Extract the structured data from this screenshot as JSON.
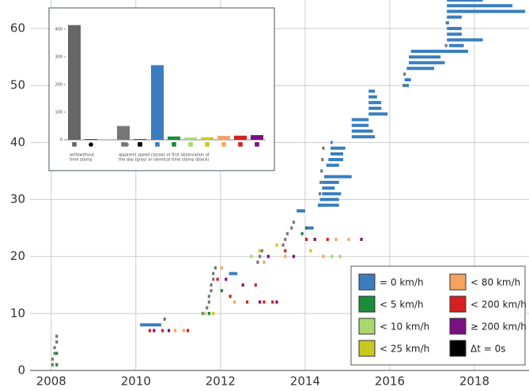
{
  "chart_data": [
    {
      "type": "timeline",
      "xlim": [
        2007.5,
        2019.29
      ],
      "ylim": [
        0,
        65
      ],
      "xticks": [
        2008,
        2010,
        2012,
        2014,
        2016,
        2018
      ],
      "yticks": [
        0,
        10,
        20,
        30,
        40,
        50,
        60
      ],
      "grid": true,
      "legend": "lower right",
      "series": [
        {
          "color": "#777777",
          "x": [
            2008.0,
            2008.0,
            2008.05,
            2008.05,
            2008.1,
            2008.1,
            2010.65,
            2011.55,
            2011.65,
            2011.7,
            2011.7,
            2011.75,
            2011.75,
            2011.8,
            2011.8,
            2011.85,
            2012.85,
            2012.9,
            2012.95,
            2013.45,
            2013.5,
            2013.55,
            2013.65,
            2013.7,
            2014.3,
            2014.32,
            2014.34,
            2014.36,
            2014.38,
            2014.4,
            2016.3,
            2016.32,
            2017.3,
            2017.32
          ],
          "x_end": [
            2008.06,
            2008.06,
            2008.11,
            2008.11,
            2008.16,
            2008.16,
            2010.71,
            2011.61,
            2011.71,
            2011.76,
            2011.76,
            2011.81,
            2011.81,
            2011.86,
            2011.86,
            2011.91,
            2012.91,
            2012.96,
            2013.01,
            2013.51,
            2013.56,
            2013.61,
            2013.71,
            2013.76,
            2014.36,
            2014.38,
            2014.4,
            2014.42,
            2014.44,
            2014.46,
            2016.36,
            2016.38,
            2017.36,
            2017.38
          ],
          "values": [
            1,
            2,
            3,
            4,
            5,
            6,
            9,
            10,
            11,
            12,
            13,
            14,
            15,
            16,
            17,
            18,
            19,
            20,
            21,
            22,
            23,
            24,
            25,
            26,
            29,
            31,
            33,
            35,
            37,
            39,
            50,
            52,
            57,
            61
          ]
        },
        {
          "name": "= 0 km/h",
          "color": "#3a7ebf",
          "x": [
            2010.1,
            2012.2,
            2013.8,
            2014.0,
            2014.3,
            2014.35,
            2014.4,
            2014.4,
            2014.4,
            2014.45,
            2014.5,
            2014.55,
            2014.6,
            2014.6,
            2014.6,
            2015.1,
            2015.1,
            2015.1,
            2015.1,
            2015.5,
            2015.5,
            2015.5,
            2015.5,
            2015.5,
            2016.35,
            2016.35,
            2016.4,
            2016.45,
            2016.45,
            2016.5,
            2017.4,
            2017.35,
            2017.35,
            2017.35,
            2017.35,
            2017.35,
            2017.35,
            2017.35,
            2017.35
          ],
          "x_end": [
            2010.6,
            2012.4,
            2014.0,
            2014.2,
            2014.8,
            2014.8,
            2014.85,
            2014.7,
            2014.8,
            2015.1,
            2014.8,
            2014.9,
            2014.9,
            2014.95,
            2014.65,
            2015.65,
            2015.6,
            2015.5,
            2015.5,
            2015.95,
            2015.8,
            2015.8,
            2015.7,
            2015.65,
            2016.45,
            2016.5,
            2017.05,
            2017.3,
            2017.2,
            2017.85,
            2017.75,
            2018.2,
            2017.7,
            2017.7,
            2017.4,
            2017.7,
            2019.2,
            2018.9,
            2018.2
          ],
          "values": [
            8,
            17,
            28,
            25,
            29,
            30,
            31,
            32,
            33,
            34,
            36,
            37,
            38,
            39,
            40,
            41,
            42,
            43,
            44,
            45,
            46,
            47,
            48,
            49,
            50,
            51,
            53,
            54,
            55,
            56,
            57,
            58,
            59,
            60,
            61,
            62,
            63,
            64,
            65
          ]
        },
        {
          "name": "< 5 km/h",
          "color": "#1a8c3a",
          "x": [
            2008.1,
            2008.1,
            2011.7,
            2012.0,
            2013.9,
            2014.0
          ],
          "x_end": [
            2008.16,
            2008.16,
            2011.76,
            2012.06,
            2013.96,
            2014.06
          ],
          "values": [
            1,
            3,
            10,
            14,
            24,
            25
          ]
        },
        {
          "name": "< 10 km/h",
          "color": "#a8d86e",
          "x": [
            2011.6,
            2012.7,
            2014.6,
            2014.8
          ],
          "x_end": [
            2011.66,
            2012.76,
            2014.66,
            2014.86
          ],
          "values": [
            10,
            20,
            20,
            20
          ]
        },
        {
          "name": "< 25 km/h",
          "color": "#c8c81e",
          "x": [
            2011.8,
            2012.9,
            2013.3,
            2014.2,
            2014.1
          ],
          "x_end": [
            2011.86,
            2012.96,
            2013.36,
            2014.26,
            2014.16
          ],
          "values": [
            10,
            21,
            22,
            23,
            21
          ]
        },
        {
          "name": "< 80 km/h",
          "color": "#f4a460",
          "x": [
            2010.9,
            2011.1,
            2012.0,
            2012.3,
            2013.0,
            2013.5,
            2014.4,
            2014.7,
            2015.0
          ],
          "x_end": [
            2010.96,
            2011.16,
            2012.06,
            2012.36,
            2013.06,
            2013.56,
            2014.46,
            2014.76,
            2015.06
          ],
          "values": [
            7,
            7,
            18,
            12,
            19,
            20,
            20,
            23,
            23
          ]
        },
        {
          "name": "< 200 km/h",
          "color": "#d62020",
          "x": [
            2010.3,
            2010.6,
            2011.2,
            2011.9,
            2012.2,
            2012.6,
            2012.8,
            2013.0,
            2013.2,
            2013.5,
            2014.0,
            2014.5
          ],
          "x_end": [
            2010.36,
            2010.66,
            2011.26,
            2011.96,
            2012.26,
            2012.66,
            2012.86,
            2013.06,
            2013.26,
            2013.56,
            2014.06,
            2014.56
          ],
          "values": [
            7,
            7,
            7,
            16,
            13,
            12,
            15,
            12,
            12,
            21,
            23,
            23
          ]
        },
        {
          "name": "≥ 200 km/h",
          "color": "#7b1080",
          "x": [
            2010.4,
            2010.75,
            2012.1,
            2012.5,
            2012.9,
            2013.3,
            2013.1,
            2013.7,
            2014.2,
            2015.3
          ],
          "x_end": [
            2010.46,
            2010.81,
            2012.16,
            2012.56,
            2012.96,
            2013.36,
            2013.16,
            2013.76,
            2014.26,
            2015.36
          ],
          "values": [
            7,
            7,
            16,
            15,
            12,
            12,
            20,
            20,
            23,
            23
          ]
        },
        {
          "name": "Δt = 0s",
          "color": "#000000",
          "x": [],
          "x_end": [],
          "values": []
        }
      ]
    },
    {
      "type": "bar",
      "ylim": [
        0,
        400
      ],
      "yticks": [
        0,
        100,
        200,
        300,
        400
      ],
      "values": [
        415,
        2,
        50,
        2,
        270,
        12,
        8,
        9,
        14,
        15,
        17
      ],
      "colors": [
        "#666666",
        "#000000",
        "#777777",
        "#000000",
        "#3a7ebf",
        "#1a8c3a",
        "#a8d86e",
        "#c8c81e",
        "#f4a460",
        "#d62020",
        "#7b1080"
      ],
      "label_left": [
        "with/without",
        "time stamp"
      ],
      "label_right": [
        "apparent speed classes or first observation of",
        "the day (gray) or identical time stamp (black)"
      ]
    }
  ]
}
